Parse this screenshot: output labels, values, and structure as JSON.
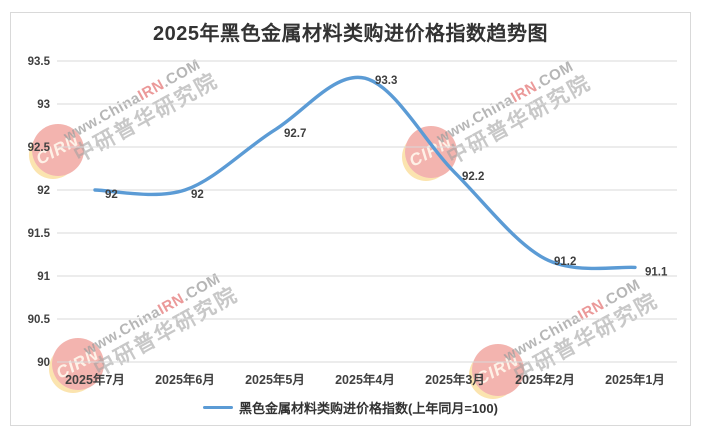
{
  "chart_data": {
    "type": "line",
    "title": "2025年黑色金属材料类购进价格指数趋势图",
    "categories": [
      "2025年7月",
      "2025年6月",
      "2025年5月",
      "2025年4月",
      "2025年3月",
      "2025年2月",
      "2025年1月"
    ],
    "series": [
      {
        "name": "黑色金属材料类购进价格指数(上年同月=100)",
        "values": [
          92,
          92,
          92.7,
          93.3,
          92.2,
          91.2,
          91.1
        ]
      }
    ],
    "data_labels": [
      "92",
      "92",
      "92.7",
      "93.3",
      "92.2",
      "91.2",
      "91.1"
    ],
    "ylim": [
      90,
      93.5
    ],
    "ytick_step": 0.5,
    "ytick_labels": [
      "90",
      "90.5",
      "91",
      "91.5",
      "92",
      "92.5",
      "93",
      "93.5"
    ],
    "xlabel": "",
    "ylabel": "",
    "grid": "horizontal",
    "legend_position": "bottom",
    "smooth": true,
    "line_color": "#5B9BD5",
    "gridline_color": "#D9D9D9",
    "axis_label_color": "#404040",
    "data_label_color": "#3F3F3F"
  },
  "watermark": {
    "badge": "CIRN",
    "url_prefix": "www.China",
    "url_highlight": "IRN",
    "url_suffix": ".COM",
    "org": "中研普华研究院"
  }
}
